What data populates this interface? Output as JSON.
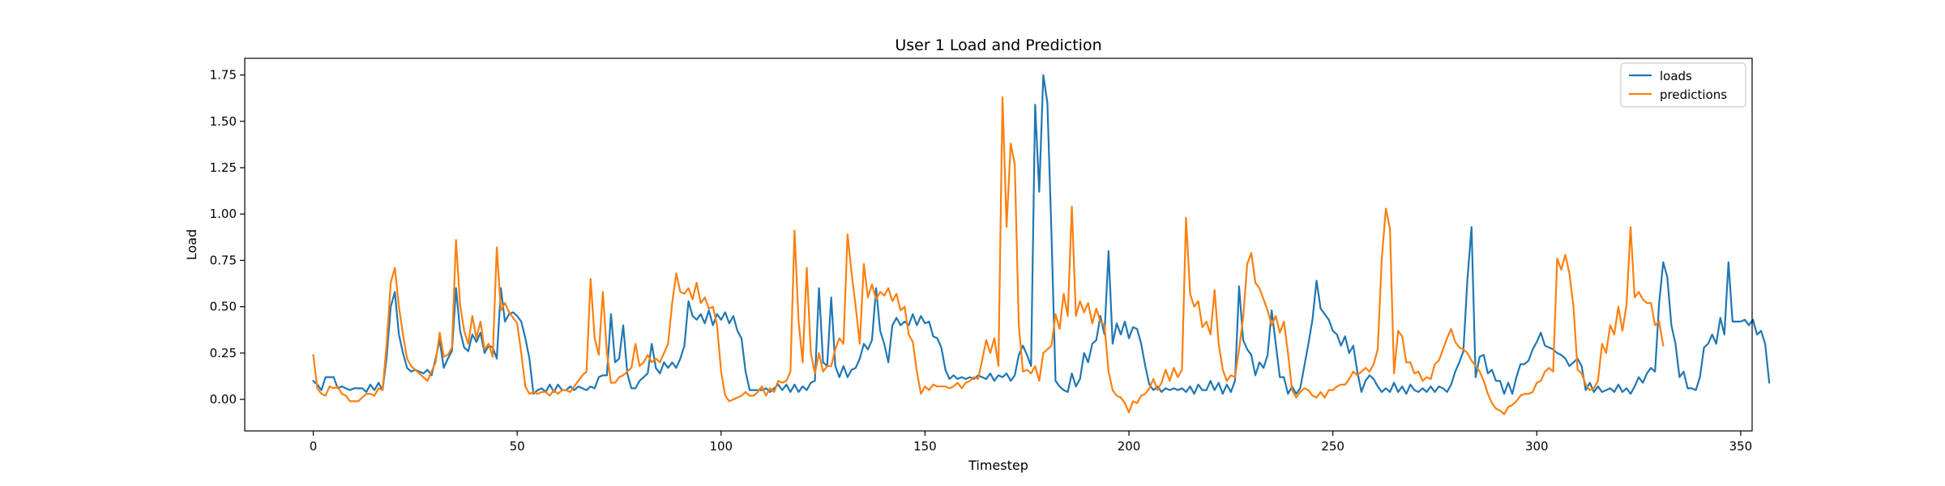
{
  "chart_data": {
    "type": "line",
    "title": "User 1 Load and Prediction",
    "xlabel": "Timestep",
    "ylabel": "Load",
    "xlim": [
      -16.8,
      352.8
    ],
    "ylim": [
      -0.17,
      1.84
    ],
    "x_ticks": [
      0,
      50,
      100,
      150,
      200,
      250,
      300,
      350
    ],
    "y_ticks": [
      0.0,
      0.25,
      0.5,
      0.75,
      1.0,
      1.25,
      1.5,
      1.75
    ],
    "x_tick_labels": [
      "0",
      "50",
      "100",
      "150",
      "200",
      "250",
      "300",
      "350"
    ],
    "y_tick_labels": [
      "0.00",
      "0.25",
      "0.50",
      "0.75",
      "1.00",
      "1.25",
      "1.50",
      "1.75"
    ],
    "grid": false,
    "legend_position": "top-right",
    "series": [
      {
        "name": "loads",
        "color": "#1f77b4",
        "x_start": 0,
        "x_step": 1,
        "values": [
          0.1,
          0.08,
          0.05,
          0.12,
          0.12,
          0.12,
          0.06,
          0.07,
          0.06,
          0.05,
          0.06,
          0.06,
          0.06,
          0.04,
          0.08,
          0.05,
          0.09,
          0.05,
          0.23,
          0.5,
          0.58,
          0.35,
          0.25,
          0.17,
          0.15,
          0.16,
          0.15,
          0.14,
          0.16,
          0.13,
          0.22,
          0.32,
          0.17,
          0.22,
          0.26,
          0.6,
          0.37,
          0.28,
          0.26,
          0.35,
          0.31,
          0.36,
          0.25,
          0.29,
          0.28,
          0.22,
          0.6,
          0.42,
          0.46,
          0.47,
          0.45,
          0.42,
          0.33,
          0.22,
          0.03,
          0.05,
          0.06,
          0.04,
          0.08,
          0.04,
          0.08,
          0.05,
          0.05,
          0.07,
          0.05,
          0.07,
          0.06,
          0.05,
          0.07,
          0.06,
          0.12,
          0.13,
          0.13,
          0.46,
          0.2,
          0.22,
          0.4,
          0.14,
          0.06,
          0.06,
          0.1,
          0.12,
          0.14,
          0.3,
          0.17,
          0.14,
          0.2,
          0.17,
          0.2,
          0.17,
          0.22,
          0.29,
          0.53,
          0.45,
          0.43,
          0.46,
          0.41,
          0.48,
          0.4,
          0.46,
          0.43,
          0.47,
          0.41,
          0.45,
          0.37,
          0.33,
          0.15,
          0.05,
          0.05,
          0.05,
          0.05,
          0.06,
          0.04,
          0.06,
          0.08,
          0.05,
          0.08,
          0.04,
          0.08,
          0.04,
          0.07,
          0.05,
          0.09,
          0.1,
          0.6,
          0.2,
          0.18,
          0.55,
          0.18,
          0.12,
          0.18,
          0.12,
          0.16,
          0.17,
          0.22,
          0.3,
          0.27,
          0.32,
          0.6,
          0.37,
          0.3,
          0.2,
          0.4,
          0.44,
          0.4,
          0.42,
          0.4,
          0.46,
          0.4,
          0.45,
          0.41,
          0.42,
          0.34,
          0.33,
          0.28,
          0.16,
          0.11,
          0.13,
          0.11,
          0.12,
          0.11,
          0.12,
          0.11,
          0.13,
          0.12,
          0.11,
          0.14,
          0.1,
          0.13,
          0.12,
          0.14,
          0.1,
          0.13,
          0.24,
          0.29,
          0.24,
          0.18,
          1.59,
          1.12,
          1.75,
          1.6,
          0.9,
          0.1,
          0.07,
          0.05,
          0.04,
          0.14,
          0.07,
          0.11,
          0.25,
          0.2,
          0.3,
          0.32,
          0.45,
          0.35,
          0.8,
          0.3,
          0.41,
          0.35,
          0.42,
          0.33,
          0.39,
          0.38,
          0.3,
          0.18,
          0.08,
          0.05,
          0.07,
          0.04,
          0.06,
          0.05,
          0.06,
          0.05,
          0.06,
          0.04,
          0.07,
          0.03,
          0.08,
          0.05,
          0.05,
          0.1,
          0.05,
          0.09,
          0.03,
          0.08,
          0.04,
          0.1,
          0.61,
          0.32,
          0.27,
          0.24,
          0.13,
          0.2,
          0.17,
          0.24,
          0.48,
          0.3,
          0.12,
          0.12,
          0.03,
          0.07,
          0.03,
          0.06,
          0.18,
          0.3,
          0.43,
          0.64,
          0.49,
          0.46,
          0.43,
          0.37,
          0.35,
          0.29,
          0.34,
          0.25,
          0.29,
          0.15,
          0.04,
          0.1,
          0.13,
          0.11,
          0.07,
          0.04,
          0.06,
          0.04,
          0.09,
          0.04,
          0.07,
          0.03,
          0.08,
          0.05,
          0.04,
          0.06,
          0.04,
          0.07,
          0.04,
          0.07,
          0.06,
          0.04,
          0.08,
          0.15,
          0.2,
          0.26,
          0.65,
          0.93,
          0.12,
          0.23,
          0.24,
          0.14,
          0.16,
          0.1,
          0.1,
          0.03,
          0.09,
          0.03,
          0.12,
          0.19,
          0.19,
          0.21,
          0.27,
          0.31,
          0.36,
          0.29,
          0.28,
          0.27,
          0.25,
          0.24,
          0.22,
          0.18,
          0.2,
          0.22,
          0.18,
          0.05,
          0.09,
          0.04,
          0.07,
          0.04,
          0.05,
          0.06,
          0.04,
          0.08,
          0.04,
          0.06,
          0.03,
          0.07,
          0.12,
          0.09,
          0.14,
          0.17,
          0.15,
          0.52,
          0.74,
          0.66,
          0.4,
          0.3,
          0.12,
          0.15,
          0.06,
          0.06,
          0.05,
          0.12,
          0.28,
          0.3,
          0.35,
          0.3,
          0.44,
          0.35,
          0.74,
          0.42,
          0.42,
          0.42,
          0.43,
          0.4,
          0.43,
          0.35,
          0.37,
          0.3,
          0.09
        ]
      },
      {
        "name": "predictions",
        "color": "#ff7f0e",
        "x_start": 0,
        "x_step": 1,
        "values": [
          0.24,
          0.06,
          0.03,
          0.02,
          0.07,
          0.06,
          0.07,
          0.03,
          0.02,
          -0.01,
          -0.01,
          -0.01,
          0.01,
          0.03,
          0.03,
          0.02,
          0.06,
          0.05,
          0.3,
          0.63,
          0.71,
          0.5,
          0.35,
          0.22,
          0.18,
          0.16,
          0.14,
          0.12,
          0.1,
          0.15,
          0.2,
          0.36,
          0.23,
          0.24,
          0.28,
          0.86,
          0.51,
          0.37,
          0.3,
          0.45,
          0.33,
          0.42,
          0.27,
          0.3,
          0.23,
          0.82,
          0.48,
          0.52,
          0.47,
          0.44,
          0.41,
          0.25,
          0.07,
          0.03,
          0.04,
          0.03,
          0.04,
          0.04,
          0.02,
          0.05,
          0.03,
          0.05,
          0.05,
          0.04,
          0.07,
          0.1,
          0.13,
          0.15,
          0.65,
          0.33,
          0.24,
          0.58,
          0.25,
          0.09,
          0.09,
          0.12,
          0.13,
          0.15,
          0.17,
          0.3,
          0.18,
          0.2,
          0.24,
          0.2,
          0.22,
          0.2,
          0.25,
          0.3,
          0.52,
          0.68,
          0.58,
          0.57,
          0.6,
          0.54,
          0.63,
          0.52,
          0.55,
          0.49,
          0.5,
          0.4,
          0.15,
          0.02,
          -0.01,
          0.0,
          0.01,
          0.02,
          0.04,
          0.02,
          0.02,
          0.04,
          0.07,
          0.02,
          0.06,
          0.04,
          0.1,
          0.09,
          0.1,
          0.15,
          0.91,
          0.42,
          0.2,
          0.71,
          0.25,
          0.14,
          0.25,
          0.15,
          0.18,
          0.18,
          0.27,
          0.33,
          0.3,
          0.89,
          0.68,
          0.5,
          0.3,
          0.73,
          0.55,
          0.62,
          0.54,
          0.58,
          0.56,
          0.6,
          0.53,
          0.57,
          0.48,
          0.5,
          0.35,
          0.31,
          0.15,
          0.03,
          0.07,
          0.05,
          0.08,
          0.07,
          0.07,
          0.07,
          0.06,
          0.07,
          0.09,
          0.06,
          0.09,
          0.1,
          0.12,
          0.11,
          0.21,
          0.32,
          0.25,
          0.33,
          0.18,
          1.63,
          0.93,
          1.38,
          1.27,
          0.4,
          0.15,
          0.16,
          0.14,
          0.18,
          0.1,
          0.25,
          0.27,
          0.29,
          0.46,
          0.38,
          0.57,
          0.45,
          1.04,
          0.45,
          0.53,
          0.47,
          0.52,
          0.41,
          0.49,
          0.42,
          0.4,
          0.15,
          0.05,
          0.02,
          0.01,
          -0.02,
          -0.07,
          -0.01,
          -0.02,
          0.02,
          0.03,
          0.06,
          0.11,
          0.05,
          0.09,
          0.16,
          0.1,
          0.17,
          0.12,
          0.16,
          0.98,
          0.57,
          0.5,
          0.53,
          0.39,
          0.42,
          0.35,
          0.59,
          0.3,
          0.16,
          0.1,
          0.13,
          0.12,
          0.27,
          0.44,
          0.73,
          0.79,
          0.63,
          0.6,
          0.54,
          0.48,
          0.4,
          0.45,
          0.36,
          0.42,
          0.25,
          0.05,
          0.01,
          0.04,
          0.06,
          0.05,
          0.02,
          0.01,
          0.04,
          0.01,
          0.05,
          0.05,
          0.07,
          0.08,
          0.08,
          0.11,
          0.15,
          0.13,
          0.15,
          0.17,
          0.15,
          0.19,
          0.27,
          0.76,
          1.03,
          0.92,
          0.14,
          0.37,
          0.34,
          0.2,
          0.2,
          0.14,
          0.15,
          0.1,
          0.12,
          0.11,
          0.19,
          0.21,
          0.27,
          0.33,
          0.38,
          0.31,
          0.28,
          0.27,
          0.25,
          0.21,
          0.18,
          0.15,
          0.1,
          0.03,
          -0.02,
          -0.05,
          -0.06,
          -0.08,
          -0.04,
          -0.03,
          -0.01,
          0.02,
          0.03,
          0.03,
          0.04,
          0.09,
          0.1,
          0.15,
          0.17,
          0.15,
          0.76,
          0.7,
          0.78,
          0.68,
          0.5,
          0.16,
          0.14,
          0.08,
          0.05,
          0.06,
          0.1,
          0.3,
          0.25,
          0.4,
          0.35,
          0.5,
          0.37,
          0.51,
          0.93,
          0.55,
          0.58,
          0.54,
          0.52,
          0.52,
          0.4,
          0.42,
          0.29
        ]
      }
    ]
  }
}
